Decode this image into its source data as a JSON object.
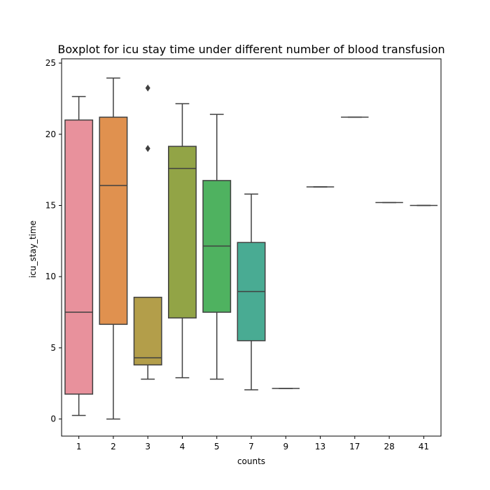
{
  "chart_data": {
    "type": "box",
    "title": "Boxplot for icu stay time under different number of blood transfusion",
    "xlabel": "counts",
    "ylabel": "icu_stay_time",
    "ylim": [
      -1.2,
      25.3
    ],
    "yticks": [
      0,
      5,
      10,
      15,
      20,
      25
    ],
    "grid": false,
    "categories": [
      "1",
      "2",
      "3",
      "4",
      "5",
      "7",
      "9",
      "13",
      "17",
      "28",
      "41"
    ],
    "boxes": [
      {
        "category": "1",
        "color": "#e8919c",
        "whisker_low": 0.25,
        "q1": 1.75,
        "median": 7.5,
        "q3": 21.0,
        "whisker_high": 22.65,
        "outliers": []
      },
      {
        "category": "2",
        "color": "#e0914f",
        "whisker_low": 0.0,
        "q1": 6.65,
        "median": 16.4,
        "q3": 21.2,
        "whisker_high": 23.95,
        "outliers": []
      },
      {
        "category": "3",
        "color": "#b39e4a",
        "whisker_low": 2.8,
        "q1": 3.8,
        "median": 4.3,
        "q3": 8.55,
        "whisker_high": 8.55,
        "outliers": [
          23.25,
          19.0
        ]
      },
      {
        "category": "4",
        "color": "#92a446",
        "whisker_low": 2.9,
        "q1": 7.1,
        "median": 17.6,
        "q3": 19.15,
        "whisker_high": 22.15,
        "outliers": []
      },
      {
        "category": "5",
        "color": "#4fb260",
        "whisker_low": 2.8,
        "q1": 7.5,
        "median": 12.15,
        "q3": 16.75,
        "whisker_high": 21.4,
        "outliers": []
      },
      {
        "category": "7",
        "color": "#49ab93",
        "whisker_low": 2.05,
        "q1": 5.5,
        "median": 8.95,
        "q3": 12.4,
        "whisker_high": 15.8,
        "outliers": []
      },
      {
        "category": "9",
        "color": "#4aa8a8",
        "whisker_low": 2.15,
        "q1": 2.15,
        "median": 2.15,
        "q3": 2.15,
        "whisker_high": 2.15,
        "outliers": []
      },
      {
        "category": "13",
        "color": "#4ea6c0",
        "whisker_low": 16.3,
        "q1": 16.3,
        "median": 16.3,
        "q3": 16.3,
        "whisker_high": 16.3,
        "outliers": []
      },
      {
        "category": "17",
        "color": "#6fa0d8",
        "whisker_low": 21.2,
        "q1": 21.2,
        "median": 21.2,
        "q3": 21.2,
        "whisker_high": 21.2,
        "outliers": []
      },
      {
        "category": "28",
        "color": "#b296e0",
        "whisker_low": 15.2,
        "q1": 15.2,
        "median": 15.2,
        "q3": 15.2,
        "whisker_high": 15.2,
        "outliers": []
      },
      {
        "category": "41",
        "color": "#e28fd2",
        "whisker_low": 15.0,
        "q1": 15.0,
        "median": 15.0,
        "q3": 15.0,
        "whisker_high": 15.0,
        "outliers": []
      }
    ],
    "line_color": "#404040",
    "legend": "none"
  }
}
